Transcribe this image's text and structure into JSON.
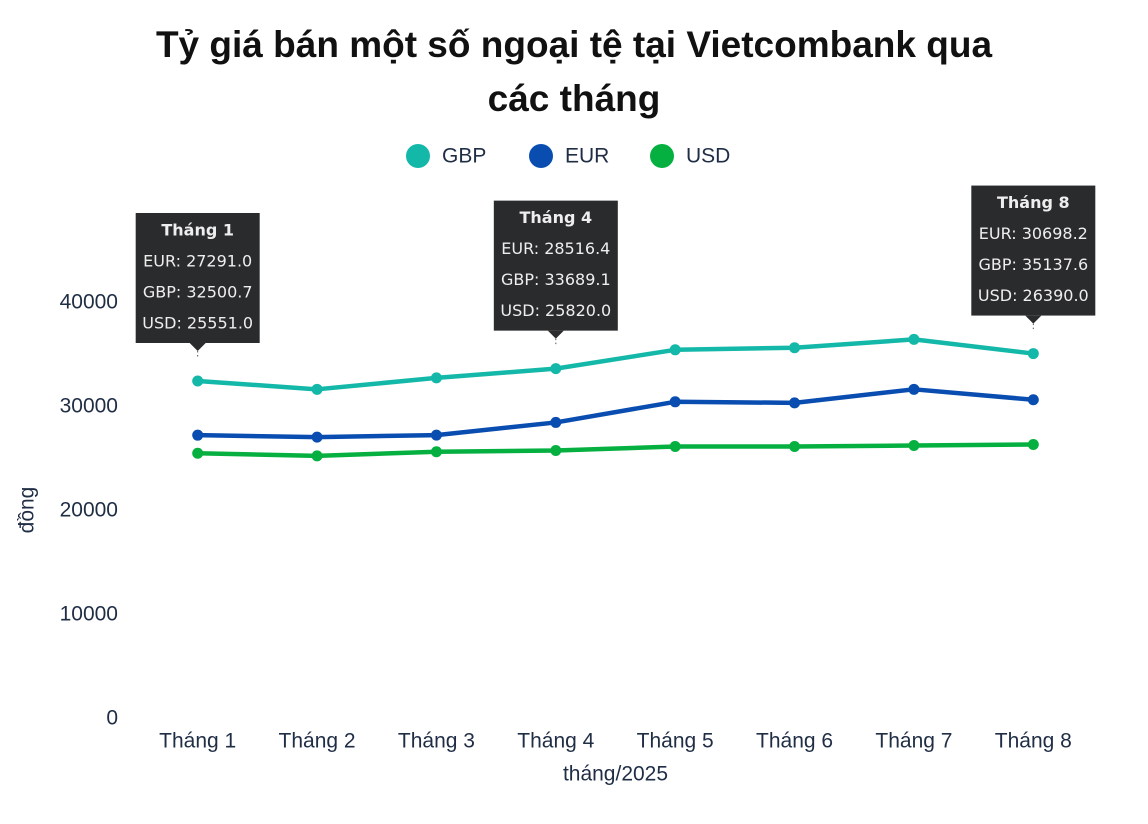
{
  "chart_data": {
    "type": "line",
    "title": "Tỷ giá bán một số ngoại tệ tại Vietcombank qua các tháng",
    "x_label": "tháng/2025",
    "y_label": "đồng",
    "categories": [
      "Tháng 1",
      "Tháng 2",
      "Tháng 3",
      "Tháng 4",
      "Tháng 5",
      "Tháng 6",
      "Tháng 7",
      "Tháng 8"
    ],
    "series": [
      {
        "name": "GBP",
        "color": "#14b8a9",
        "values": [
          32500.7,
          31700,
          32800,
          33689.1,
          35500,
          35700,
          36500,
          35137.6
        ],
        "value_labels": [
          "GBP: 32500.7",
          null,
          null,
          "GBP: 33689.1",
          null,
          null,
          null,
          "GBP: 35137.6"
        ]
      },
      {
        "name": "EUR",
        "color": "#0a4db0",
        "values": [
          27291.0,
          27100,
          27300,
          28516.4,
          30500,
          30400,
          31700,
          30698.2
        ],
        "value_labels": [
          "EUR: 27291.0",
          null,
          null,
          "EUR: 28516.4",
          null,
          null,
          null,
          "EUR: 30698.2"
        ]
      },
      {
        "name": "USD",
        "color": "#06b040",
        "values": [
          25551.0,
          25300,
          25700,
          25820.0,
          26200,
          26200,
          26300,
          26390.0
        ],
        "value_labels": [
          "USD: 25551.0",
          null,
          null,
          "USD: 25820.0",
          null,
          null,
          null,
          "USD: 26390.0"
        ]
      }
    ],
    "ylim": [
      0,
      50000
    ],
    "yticks": [
      0,
      10000,
      20000,
      30000,
      40000
    ],
    "grid": false,
    "legend": "top"
  }
}
